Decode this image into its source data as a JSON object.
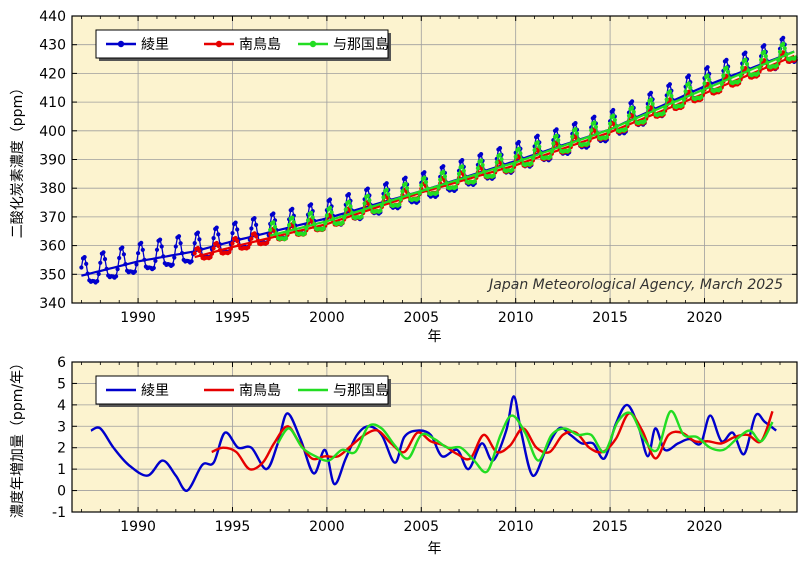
{
  "chart_data": [
    {
      "type": "line",
      "ylabel": "二酸化炭素濃度（ppm）",
      "xlabel": "年",
      "xlim": [
        1986.5,
        2024.9
      ],
      "ylim": [
        340,
        440
      ],
      "xticks": [
        1990,
        1995,
        2000,
        2005,
        2010,
        2015,
        2020
      ],
      "yticks": [
        340,
        350,
        360,
        370,
        380,
        390,
        400,
        410,
        420,
        430,
        440
      ],
      "grid": true,
      "legend_position": "top-left",
      "annotation": "Japan Meteorological Agency, March 2025",
      "series": [
        {
          "name": "綾里",
          "color": "#0000cc",
          "marker": "circle",
          "start": 1987.0,
          "end": 2024.9,
          "anchors": [
            [
              1987,
              349.5
            ],
            [
              1990,
              354.5
            ],
            [
              1993,
              358.0
            ],
            [
              1995,
              361.5
            ],
            [
              2000,
              369.5
            ],
            [
              2005,
              379.0
            ],
            [
              2010,
              389.5
            ],
            [
              2015,
              400.5
            ],
            [
              2020,
              415.5
            ],
            [
              2024.9,
              428.0
            ]
          ],
          "amplitude": 6.5
        },
        {
          "name": "南鳥島",
          "color": "#e60000",
          "marker": "circle",
          "start": 1993.0,
          "end": 2024.9,
          "anchors": [
            [
              1993,
              356.0
            ],
            [
              1995,
              359.5
            ],
            [
              2000,
              367.5
            ],
            [
              2005,
              378.5
            ],
            [
              2010,
              388.0
            ],
            [
              2015,
              399.5
            ],
            [
              2020,
              413.0
            ],
            [
              2024.9,
              426.5
            ]
          ],
          "amplitude": 3.0
        },
        {
          "name": "与那国島",
          "color": "#22dd22",
          "marker": "circle",
          "start": 1997.0,
          "end": 2024.9,
          "anchors": [
            [
              1997,
              363.5
            ],
            [
              2000,
              368.5
            ],
            [
              2005,
              379.0
            ],
            [
              2010,
              389.0
            ],
            [
              2015,
              400.5
            ],
            [
              2020,
              414.5
            ],
            [
              2024.9,
              428.0
            ]
          ],
          "amplitude": 4.5
        }
      ]
    },
    {
      "type": "line",
      "ylabel": "濃度年増加量（ppm/年）",
      "xlabel": "年",
      "xlim": [
        1986.5,
        2024.9
      ],
      "ylim": [
        -1,
        6
      ],
      "xticks": [
        1990,
        1995,
        2000,
        2005,
        2010,
        2015,
        2020
      ],
      "yticks": [
        -1,
        0,
        1,
        2,
        3,
        4,
        5,
        6
      ],
      "grid": true,
      "legend_position": "top-left",
      "series": [
        {
          "name": "綾里",
          "color": "#0000cc",
          "x": [
            1987.5,
            1988.0,
            1988.7,
            1989.5,
            1990.5,
            1991.3,
            1992.0,
            1992.6,
            1993.4,
            1994.0,
            1994.6,
            1995.3,
            1996.0,
            1996.8,
            1997.4,
            1997.9,
            1998.6,
            1999.3,
            1999.9,
            2000.4,
            2001.0,
            2001.6,
            2002.2,
            2002.9,
            2003.6,
            2004.1,
            2004.8,
            2005.5,
            2006.1,
            2006.9,
            2007.5,
            2008.2,
            2008.8,
            2009.5,
            2009.9,
            2010.3,
            2010.9,
            2011.6,
            2012.3,
            2012.9,
            2013.5,
            2014.1,
            2014.7,
            2015.3,
            2015.9,
            2016.5,
            2017.0,
            2017.4,
            2017.9,
            2018.6,
            2019.2,
            2019.8,
            2020.3,
            2020.9,
            2021.5,
            2022.1,
            2022.7,
            2023.2,
            2023.8
          ],
          "y": [
            2.8,
            2.9,
            2.0,
            1.2,
            0.7,
            1.4,
            0.7,
            0.0,
            1.2,
            1.3,
            2.7,
            2.0,
            2.0,
            1.0,
            2.2,
            3.6,
            2.4,
            0.8,
            1.9,
            0.3,
            1.5,
            2.6,
            3.0,
            2.6,
            1.3,
            2.5,
            2.8,
            2.6,
            1.6,
            1.9,
            1.0,
            2.2,
            1.4,
            2.8,
            4.4,
            2.7,
            0.7,
            1.9,
            2.9,
            2.6,
            2.2,
            2.2,
            1.5,
            3.1,
            4.0,
            3.0,
            1.6,
            2.9,
            1.9,
            2.2,
            2.4,
            2.2,
            3.5,
            2.3,
            2.7,
            1.7,
            3.5,
            3.2,
            2.8
          ]
        },
        {
          "name": "南鳥島",
          "color": "#e60000",
          "x": [
            1993.9,
            1994.5,
            1995.2,
            1995.9,
            1996.6,
            1997.2,
            1997.9,
            1998.5,
            1999.2,
            1999.9,
            2000.6,
            2001.3,
            2002.0,
            2002.7,
            2003.4,
            2004.1,
            2004.8,
            2005.5,
            2006.2,
            2006.9,
            2007.6,
            2008.3,
            2009.0,
            2009.7,
            2010.4,
            2011.1,
            2011.8,
            2012.5,
            2013.2,
            2013.9,
            2014.6,
            2015.3,
            2016.0,
            2016.7,
            2017.4,
            2018.1,
            2018.8,
            2019.5,
            2020.2,
            2020.9,
            2021.6,
            2022.3,
            2023.0,
            2023.6
          ],
          "y": [
            1.8,
            2.0,
            1.8,
            1.0,
            1.3,
            2.2,
            3.0,
            2.3,
            1.5,
            1.6,
            1.6,
            2.1,
            2.6,
            2.8,
            2.2,
            1.8,
            2.7,
            2.3,
            2.1,
            1.7,
            1.5,
            2.6,
            1.8,
            2.1,
            2.9,
            2.0,
            1.8,
            2.6,
            2.7,
            2.0,
            1.8,
            2.4,
            3.6,
            2.8,
            1.5,
            2.6,
            2.7,
            2.3,
            2.3,
            2.2,
            2.5,
            2.6,
            2.3,
            3.7
          ]
        },
        {
          "name": "与那国島",
          "color": "#22dd22",
          "x": [
            1997.4,
            1998.0,
            1998.7,
            1999.4,
            2000.1,
            2000.8,
            2001.5,
            2002.2,
            2002.9,
            2003.6,
            2004.3,
            2005.0,
            2005.7,
            2006.4,
            2007.1,
            2007.8,
            2008.5,
            2009.2,
            2009.8,
            2010.5,
            2011.2,
            2011.9,
            2012.6,
            2013.3,
            2014.0,
            2014.7,
            2015.4,
            2016.1,
            2016.8,
            2017.5,
            2018.2,
            2018.9,
            2019.6,
            2020.3,
            2021.0,
            2021.7,
            2022.4,
            2023.0,
            2023.6
          ],
          "y": [
            2.2,
            2.9,
            2.0,
            1.6,
            1.4,
            1.9,
            1.8,
            3.0,
            2.9,
            2.1,
            1.5,
            2.6,
            2.4,
            2.0,
            2.0,
            1.4,
            0.9,
            2.6,
            3.5,
            2.7,
            1.4,
            2.6,
            2.9,
            2.6,
            2.6,
            1.8,
            3.2,
            3.6,
            2.4,
            1.9,
            3.7,
            2.6,
            2.5,
            2.0,
            1.9,
            2.4,
            2.8,
            2.3,
            3.2
          ]
        }
      ]
    }
  ]
}
